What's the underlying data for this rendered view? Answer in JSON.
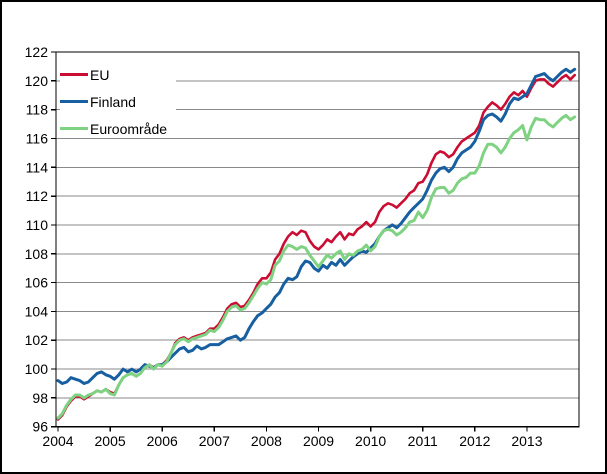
{
  "window": {
    "background": "#ffffff",
    "outer_border_color": "#000000"
  },
  "legend": {
    "position": "top-left",
    "items": [
      {
        "label": "EU",
        "color": "#cc0d33"
      },
      {
        "label": "Finland",
        "color": "#175fa0"
      },
      {
        "label": "Euroområde",
        "color": "#80d283"
      }
    ]
  },
  "chart_data": {
    "type": "line",
    "title": "",
    "xlabel": "",
    "ylabel": "",
    "x_start": "2004-01",
    "x_end": "2013-12",
    "x_frequency": "monthly",
    "x_tick_labels": [
      "2004",
      "2005",
      "2006",
      "2007",
      "2008",
      "2009",
      "2010",
      "2011",
      "2012",
      "2013"
    ],
    "y_ticks": [
      96,
      98,
      100,
      102,
      104,
      106,
      108,
      110,
      112,
      114,
      116,
      118,
      120,
      122
    ],
    "ylim": [
      96,
      122
    ],
    "grid": "horizontal",
    "grid_color": "#8a8a8a",
    "axis_color": "#000000",
    "series": [
      {
        "name": "EU",
        "color": "#cc0d33",
        "width": 2.6,
        "values": [
          96.5,
          96.8,
          97.4,
          97.8,
          98.1,
          98.1,
          97.9,
          98.1,
          98.3,
          98.5,
          98.4,
          98.6,
          98.4,
          98.3,
          98.9,
          99.4,
          99.6,
          99.7,
          99.5,
          99.7,
          100.1,
          100.3,
          100.1,
          100.3,
          100.3,
          100.6,
          101.1,
          101.8,
          102.1,
          102.2,
          102.0,
          102.2,
          102.3,
          102.4,
          102.5,
          102.8,
          102.8,
          103.1,
          103.6,
          104.2,
          104.5,
          104.6,
          104.3,
          104.4,
          104.8,
          105.3,
          105.9,
          106.3,
          106.3,
          106.7,
          107.6,
          108.0,
          108.7,
          109.2,
          109.5,
          109.3,
          109.6,
          109.5,
          108.9,
          108.5,
          108.3,
          108.6,
          109.0,
          108.8,
          109.2,
          109.5,
          109.0,
          109.4,
          109.3,
          109.7,
          109.9,
          110.2,
          109.9,
          110.2,
          110.9,
          111.3,
          111.5,
          111.4,
          111.2,
          111.5,
          111.8,
          112.2,
          112.4,
          112.9,
          113.0,
          113.5,
          114.3,
          114.9,
          115.1,
          115.0,
          114.7,
          114.9,
          115.4,
          115.8,
          116.0,
          116.2,
          116.4,
          116.9,
          117.8,
          118.2,
          118.5,
          118.3,
          118.0,
          118.4,
          118.9,
          119.2,
          119.0,
          119.3,
          118.9,
          119.5,
          120.0,
          120.1,
          120.1,
          119.8,
          119.6,
          119.9,
          120.2,
          120.4,
          120.1,
          120.4
        ]
      },
      {
        "name": "Finland",
        "color": "#175fa0",
        "width": 3,
        "values": [
          99.2,
          99.0,
          99.1,
          99.4,
          99.3,
          99.2,
          99.0,
          99.1,
          99.4,
          99.7,
          99.8,
          99.6,
          99.5,
          99.3,
          99.6,
          100.0,
          99.8,
          100.0,
          99.8,
          100.0,
          100.3,
          100.2,
          100.1,
          100.3,
          100.3,
          100.5,
          100.8,
          101.1,
          101.4,
          101.5,
          101.2,
          101.3,
          101.6,
          101.4,
          101.5,
          101.7,
          101.7,
          101.7,
          101.9,
          102.1,
          102.2,
          102.3,
          102.0,
          102.2,
          102.8,
          103.3,
          103.7,
          103.9,
          104.2,
          104.5,
          105.0,
          105.3,
          105.9,
          106.3,
          106.2,
          106.4,
          107.1,
          107.5,
          107.4,
          107.0,
          106.8,
          107.2,
          107.0,
          107.4,
          107.2,
          107.6,
          107.2,
          107.5,
          107.8,
          108.0,
          108.2,
          108.1,
          108.4,
          108.7,
          109.2,
          109.6,
          109.8,
          110.0,
          109.8,
          110.1,
          110.5,
          110.9,
          111.2,
          111.5,
          111.8,
          112.4,
          113.1,
          113.6,
          113.9,
          114.0,
          113.7,
          114.0,
          114.6,
          115.0,
          115.2,
          115.4,
          115.8,
          116.5,
          117.3,
          117.6,
          117.7,
          117.5,
          117.2,
          117.7,
          118.4,
          118.8,
          118.7,
          118.9,
          119.1,
          119.7,
          120.3,
          120.4,
          120.5,
          120.2,
          120.0,
          120.3,
          120.6,
          120.8,
          120.6,
          120.8
        ]
      },
      {
        "name": "Euroområde",
        "color": "#80d283",
        "width": 3,
        "values": [
          96.6,
          96.9,
          97.5,
          97.9,
          98.2,
          98.2,
          98.0,
          98.2,
          98.3,
          98.5,
          98.4,
          98.6,
          98.3,
          98.2,
          98.9,
          99.4,
          99.6,
          99.7,
          99.5,
          99.7,
          100.1,
          100.3,
          100.0,
          100.3,
          100.2,
          100.5,
          101.1,
          101.7,
          102.0,
          102.1,
          101.9,
          102.1,
          102.2,
          102.3,
          102.4,
          102.7,
          102.6,
          102.9,
          103.4,
          104.0,
          104.3,
          104.4,
          104.1,
          104.2,
          104.6,
          105.1,
          105.6,
          106.0,
          105.9,
          106.2,
          107.2,
          107.5,
          108.2,
          108.6,
          108.5,
          108.3,
          108.5,
          108.4,
          107.9,
          107.5,
          107.1,
          107.5,
          107.9,
          107.7,
          108.0,
          108.2,
          107.6,
          108.0,
          107.9,
          108.2,
          108.3,
          108.6,
          108.2,
          108.5,
          109.2,
          109.6,
          109.7,
          109.6,
          109.3,
          109.5,
          109.8,
          110.2,
          110.3,
          110.9,
          110.5,
          111.0,
          111.9,
          112.5,
          112.6,
          112.6,
          112.2,
          112.4,
          112.9,
          113.2,
          113.3,
          113.6,
          113.6,
          114.1,
          115.0,
          115.6,
          115.6,
          115.4,
          115.0,
          115.4,
          116.0,
          116.4,
          116.6,
          116.9,
          115.9,
          116.8,
          117.4,
          117.3,
          117.3,
          117.0,
          116.8,
          117.1,
          117.4,
          117.6,
          117.3,
          117.5
        ]
      }
    ]
  }
}
